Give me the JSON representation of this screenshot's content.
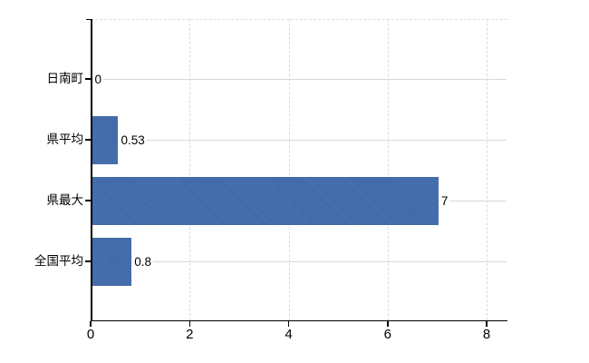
{
  "chart_data": {
    "type": "bar",
    "orientation": "horizontal",
    "title": "",
    "xlabel": "",
    "ylabel": "",
    "categories": [
      "日南町",
      "県平均",
      "県最大",
      "全国平均"
    ],
    "values": [
      0,
      0.53,
      7,
      0.8
    ],
    "value_labels": [
      "0",
      "0.53",
      "7",
      "0.8"
    ],
    "xticks": [
      0,
      2,
      4,
      6,
      8
    ],
    "xtick_labels": [
      "0",
      "2",
      "4",
      "6",
      "8"
    ],
    "xlim": [
      0,
      8.4
    ],
    "grid": {
      "vertical": "dashed",
      "horizontal_row_lines": true,
      "top_border": "dashed"
    },
    "legend": false,
    "colors": {
      "bar": "#3c69ad",
      "row_line": "#d9d9d9",
      "vgrid": "#dcdcdc",
      "axis": "#000000",
      "text": "#000000",
      "background": "#ffffff",
      "label_background": "#ffffff"
    }
  }
}
